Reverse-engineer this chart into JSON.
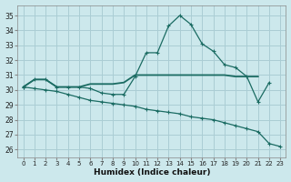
{
  "xlabel": "Humidex (Indice chaleur)",
  "background_color": "#cce8ec",
  "grid_color": "#aacdd4",
  "line_color": "#1a6b62",
  "x_ticks": [
    0,
    1,
    2,
    3,
    4,
    5,
    6,
    7,
    8,
    9,
    10,
    11,
    12,
    13,
    14,
    15,
    16,
    17,
    18,
    19,
    20,
    21,
    22,
    23
  ],
  "y_ticks": [
    26,
    27,
    28,
    29,
    30,
    31,
    32,
    33,
    34,
    35
  ],
  "ylim": [
    25.5,
    35.7
  ],
  "xlim": [
    -0.5,
    23.5
  ],
  "line1_x": [
    0,
    1,
    2,
    3,
    4,
    5,
    6,
    7,
    8,
    9,
    10,
    11,
    12,
    13,
    14,
    15,
    16,
    17,
    18,
    19,
    20,
    21,
    22
  ],
  "line1_y": [
    30.2,
    30.7,
    30.7,
    30.2,
    30.2,
    30.2,
    30.1,
    29.8,
    29.7,
    29.7,
    30.9,
    32.5,
    32.5,
    34.3,
    35.0,
    34.4,
    33.1,
    32.6,
    31.7,
    31.5,
    30.9,
    29.2,
    30.5
  ],
  "line2_x": [
    0,
    1,
    2,
    3,
    4,
    5,
    6,
    7,
    8,
    9,
    10,
    11,
    12,
    13,
    14,
    15,
    16,
    17,
    18,
    19,
    20,
    21
  ],
  "line2_y": [
    30.2,
    30.7,
    30.7,
    30.2,
    30.2,
    30.2,
    30.4,
    30.4,
    30.4,
    30.5,
    31.0,
    31.0,
    31.0,
    31.0,
    31.0,
    31.0,
    31.0,
    31.0,
    31.0,
    30.9,
    30.9,
    30.9
  ],
  "line3_x": [
    0,
    1,
    2,
    3,
    4,
    5,
    6,
    7,
    8,
    9,
    10,
    11,
    12,
    13,
    14,
    15,
    16,
    17,
    18,
    19,
    20,
    21,
    22,
    23
  ],
  "line3_y": [
    30.2,
    30.1,
    30.0,
    29.9,
    29.7,
    29.5,
    29.3,
    29.2,
    29.1,
    29.0,
    28.9,
    28.7,
    28.6,
    28.5,
    28.4,
    28.2,
    28.1,
    28.0,
    27.8,
    27.6,
    27.4,
    27.2,
    26.4,
    26.2
  ]
}
